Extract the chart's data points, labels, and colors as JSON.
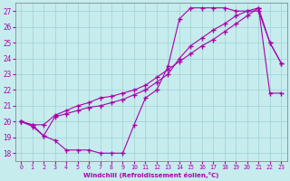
{
  "xlabel": "Windchill (Refroidissement éolien,°C)",
  "xlim": [
    -0.5,
    23.5
  ],
  "ylim": [
    17.5,
    27.5
  ],
  "xticks": [
    0,
    1,
    2,
    3,
    4,
    5,
    6,
    7,
    8,
    9,
    10,
    11,
    12,
    13,
    14,
    15,
    16,
    17,
    18,
    19,
    20,
    21,
    22,
    23
  ],
  "yticks": [
    18,
    19,
    20,
    21,
    22,
    23,
    24,
    25,
    26,
    27
  ],
  "bg_color": "#c6ecee",
  "grid_color": "#a0d0d4",
  "line_color": "#aa00aa",
  "curve1_x": [
    0,
    1,
    2,
    3,
    4,
    5,
    6,
    7,
    8,
    9,
    10,
    11,
    12,
    13,
    14,
    15,
    16,
    17,
    18,
    19,
    20,
    21,
    22,
    23
  ],
  "curve1_y": [
    20.0,
    19.7,
    19.1,
    18.8,
    18.2,
    18.2,
    18.2,
    18.0,
    18.0,
    18.0,
    19.8,
    21.5,
    22.0,
    23.5,
    26.5,
    27.2,
    27.2,
    27.2,
    27.2,
    27.0,
    27.0,
    27.0,
    25.0,
    23.7
  ],
  "curve2_x": [
    0,
    1,
    2,
    3,
    4,
    5,
    6,
    7,
    8,
    9,
    10,
    11,
    12,
    13,
    14,
    15,
    16,
    17,
    18,
    19,
    20,
    21,
    22,
    23
  ],
  "curve2_y": [
    20.0,
    19.8,
    19.1,
    20.3,
    20.5,
    20.7,
    20.9,
    21.0,
    21.2,
    21.4,
    21.7,
    22.0,
    22.5,
    23.0,
    24.0,
    24.8,
    25.3,
    25.8,
    26.2,
    26.7,
    27.0,
    27.2,
    25.0,
    23.7
  ],
  "curve3_x": [
    0,
    1,
    2,
    3,
    4,
    5,
    6,
    7,
    8,
    9,
    10,
    11,
    12,
    13,
    14,
    15,
    16,
    17,
    18,
    19,
    20,
    21,
    22,
    23
  ],
  "curve3_y": [
    20.0,
    19.8,
    19.8,
    20.4,
    20.7,
    21.0,
    21.2,
    21.5,
    21.6,
    21.8,
    22.0,
    22.3,
    22.8,
    23.3,
    23.8,
    24.3,
    24.8,
    25.2,
    25.7,
    26.2,
    26.7,
    27.2,
    21.8,
    21.8
  ]
}
